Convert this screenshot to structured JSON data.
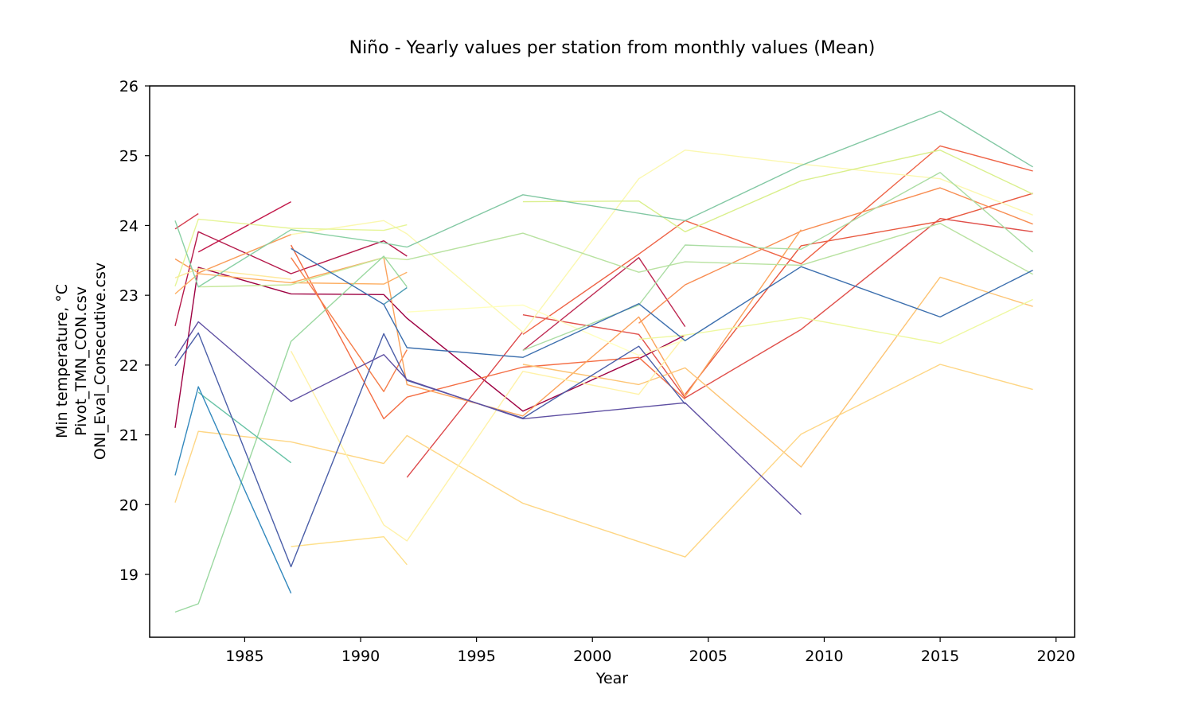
{
  "chart_data": {
    "type": "line",
    "title": "Niño - Yearly values per station from monthly values (Mean)",
    "xlabel": "Year",
    "ylabel_lines": [
      "Min temperature, °C",
      "Pivot_TMN_CON.csv",
      "ONI_Eval_Consecutive.csv"
    ],
    "xlim": [
      1980.9,
      2020.8
    ],
    "ylim": [
      18.1,
      26.0
    ],
    "xticks": [
      1985,
      1990,
      1995,
      2000,
      2005,
      2010,
      2015,
      2020
    ],
    "yticks": [
      19,
      20,
      21,
      22,
      23,
      24,
      25,
      26
    ],
    "grid": false,
    "legend": "none",
    "series": [
      {
        "color": "#9e0142",
        "x": [
          1982,
          1983,
          1987,
          1991,
          1992,
          1997,
          2002,
          2004
        ],
        "y": [
          21.1,
          23.4,
          23.02,
          23.01,
          22.67,
          21.34,
          22.09,
          22.43
        ]
      },
      {
        "color": "#b5194a",
        "x": [
          1982,
          1983,
          1987,
          1991,
          1992
        ],
        "y": [
          22.56,
          23.91,
          23.31,
          23.78,
          23.56
        ]
      },
      {
        "color": "#c2184a",
        "x": [
          1983,
          1987
        ],
        "y": [
          23.62,
          24.34
        ]
      },
      {
        "color": "#a61d4a",
        "x": [
          1991
        ],
        "y": [
          22.79
        ]
      },
      {
        "color": "#be2a53",
        "x": [
          1997,
          2002,
          2004
        ],
        "y": [
          22.21,
          23.54,
          22.55
        ]
      },
      {
        "color": "#d53e4f",
        "x": [
          1982,
          1983
        ],
        "y": [
          23.95,
          24.17
        ]
      },
      {
        "color": "#dd4a4c",
        "x": [
          1992,
          1997
        ],
        "y": [
          20.39,
          22.48
        ]
      },
      {
        "color": "#e04f4a",
        "x": [
          1997,
          2002,
          2004,
          2009,
          2015,
          2019
        ],
        "y": [
          22.72,
          22.44,
          21.53,
          22.51,
          24.1,
          23.91
        ]
      },
      {
        "color": "#e8583f",
        "x": [
          2004,
          2009,
          2015,
          2019
        ],
        "y": [
          21.58,
          23.71,
          24.06,
          24.46
        ]
      },
      {
        "color": "#ee6346",
        "x": [
          1997,
          2002,
          2004,
          2009,
          2015,
          2019
        ],
        "y": [
          22.44,
          23.59,
          24.07,
          23.45,
          25.14,
          24.78
        ]
      },
      {
        "color": "#f46d43",
        "x": [
          1987,
          1991,
          1992,
          1997,
          2002,
          2004
        ],
        "y": [
          23.72,
          21.23,
          21.54,
          21.97,
          22.11,
          21.51
        ]
      },
      {
        "color": "#f57e4a",
        "x": [
          1987,
          1991,
          1992
        ],
        "y": [
          23.54,
          21.62,
          22.22
        ]
      },
      {
        "color": "#f88d52",
        "x": [
          2002,
          2004,
          2009,
          2015,
          2019
        ],
        "y": [
          22.6,
          23.15,
          23.92,
          24.54,
          24.02
        ]
      },
      {
        "color": "#f99c58",
        "x": [
          1982,
          1983,
          1987
        ],
        "y": [
          23.52,
          23.32,
          23.87
        ]
      },
      {
        "color": "#fba35c",
        "x": [
          1987,
          1991,
          1992,
          1997,
          2002,
          2004,
          2009
        ],
        "y": [
          23.18,
          23.54,
          21.72,
          21.27,
          22.69,
          21.55,
          23.94
        ]
      },
      {
        "color": "#fdae61",
        "x": [
          1982,
          1983,
          1987,
          1991,
          1992
        ],
        "y": [
          23.02,
          23.31,
          23.18,
          23.16,
          23.33
        ]
      },
      {
        "color": "#fdc474",
        "x": [
          1997,
          2002,
          2004,
          2009,
          2015,
          2019
        ],
        "y": [
          22.01,
          21.72,
          21.96,
          20.54,
          23.26,
          22.84
        ]
      },
      {
        "color": "#fed684",
        "x": [
          1982,
          1983,
          1987,
          1991,
          1992,
          1997,
          2004,
          2009,
          2015,
          2019
        ],
        "y": [
          20.03,
          21.05,
          20.9,
          20.59,
          20.99,
          20.02,
          19.25,
          21.01,
          22.01,
          21.65
        ]
      },
      {
        "color": "#fee08b",
        "x": [
          1987,
          1991,
          1992
        ],
        "y": [
          19.4,
          19.54,
          19.14
        ]
      },
      {
        "color": "#fee99d",
        "x": [
          1982,
          1983,
          1987
        ],
        "y": [
          23.25,
          23.38,
          23.23
        ]
      },
      {
        "color": "#fff2a8",
        "x": [
          1987,
          1991,
          1992,
          1997,
          2002,
          2004
        ],
        "y": [
          22.2,
          19.71,
          19.48,
          21.91,
          21.58,
          22.43
        ]
      },
      {
        "color": "#fbf8b0",
        "x": [
          1987,
          1991,
          1992,
          1997,
          2002,
          2004,
          2009,
          2015,
          2019
        ],
        "y": [
          23.87,
          24.07,
          23.88,
          22.47,
          24.67,
          25.08,
          24.88,
          24.67,
          24.15
        ]
      },
      {
        "color": "#ffffbf",
        "x": [
          1992,
          1997,
          2002,
          2004
        ],
        "y": [
          22.76,
          22.86,
          22.14,
          22.36
        ]
      },
      {
        "color": "#eef8a0",
        "x": [
          2002,
          2004,
          2009,
          2015,
          2019
        ],
        "y": [
          22.37,
          22.43,
          22.68,
          22.31,
          22.94
        ]
      },
      {
        "color": "#e6f598",
        "x": [
          1982,
          1983,
          1987,
          1991,
          1992
        ],
        "y": [
          23.13,
          24.09,
          23.96,
          23.93,
          24.01
        ]
      },
      {
        "color": "#d9ef8b",
        "x": [
          1997,
          2002,
          2004,
          2009,
          2015,
          2019
        ],
        "y": [
          24.34,
          24.35,
          23.91,
          24.64,
          25.08,
          24.45
        ]
      },
      {
        "color": "#c7e89c",
        "x": [
          1983,
          1987,
          1991,
          1992
        ],
        "y": [
          23.12,
          23.15,
          23.54,
          23.51
        ]
      },
      {
        "color": "#b8e2a0",
        "x": [
          1992,
          1997,
          2002,
          2004,
          2009,
          2015,
          2019
        ],
        "y": [
          23.51,
          23.89,
          23.33,
          23.48,
          23.43,
          24.03,
          23.3
        ]
      },
      {
        "color": "#abdda4",
        "x": [
          1997,
          2002,
          2004,
          2009,
          2015,
          2019
        ],
        "y": [
          22.21,
          22.86,
          23.72,
          23.66,
          24.76,
          23.62
        ]
      },
      {
        "color": "#9ad8a0",
        "x": [
          1982,
          1983,
          1987,
          1991,
          1992
        ],
        "y": [
          18.46,
          18.58,
          22.34,
          23.56,
          23.12
        ]
      },
      {
        "color": "#89d0a4",
        "x": [
          1982,
          1983,
          1987,
          1991,
          1992
        ],
        "y": [
          24.07,
          23.12,
          23.94,
          23.75,
          23.69
        ]
      },
      {
        "color": "#82c8a3",
        "x": [
          1992,
          1997,
          2004,
          2009,
          2015,
          2019
        ],
        "y": [
          23.69,
          24.44,
          24.07,
          24.86,
          25.64,
          24.84
        ]
      },
      {
        "color": "#66c2a5",
        "x": [
          1983,
          1987
        ],
        "y": [
          21.61,
          20.6
        ]
      },
      {
        "color": "#4d9cb4",
        "x": [
          1991,
          1992
        ],
        "y": [
          22.87,
          23.11
        ]
      },
      {
        "color": "#3288bd",
        "x": [
          1982,
          1983,
          1987
        ],
        "y": [
          20.42,
          21.69,
          18.73
        ]
      },
      {
        "color": "#3c6fae",
        "x": [
          1987,
          1991,
          1992,
          1997,
          2002,
          2004,
          2009,
          2015,
          2019
        ],
        "y": [
          23.67,
          22.87,
          22.25,
          22.11,
          22.88,
          22.35,
          23.41,
          22.69,
          23.36
        ]
      },
      {
        "color": "#4a5ea8",
        "x": [
          1982,
          1983,
          1987,
          1991,
          1992,
          1997,
          2002,
          2004
        ],
        "y": [
          21.99,
          22.46,
          19.11,
          22.45,
          21.78,
          21.24,
          22.27,
          21.44
        ]
      },
      {
        "color": "#5e4fa2",
        "x": [
          1982,
          1983,
          1987,
          1991,
          1992,
          1997,
          2004,
          2009
        ],
        "y": [
          22.1,
          22.62,
          21.48,
          22.15,
          21.79,
          21.23,
          21.46,
          19.86
        ]
      }
    ]
  }
}
